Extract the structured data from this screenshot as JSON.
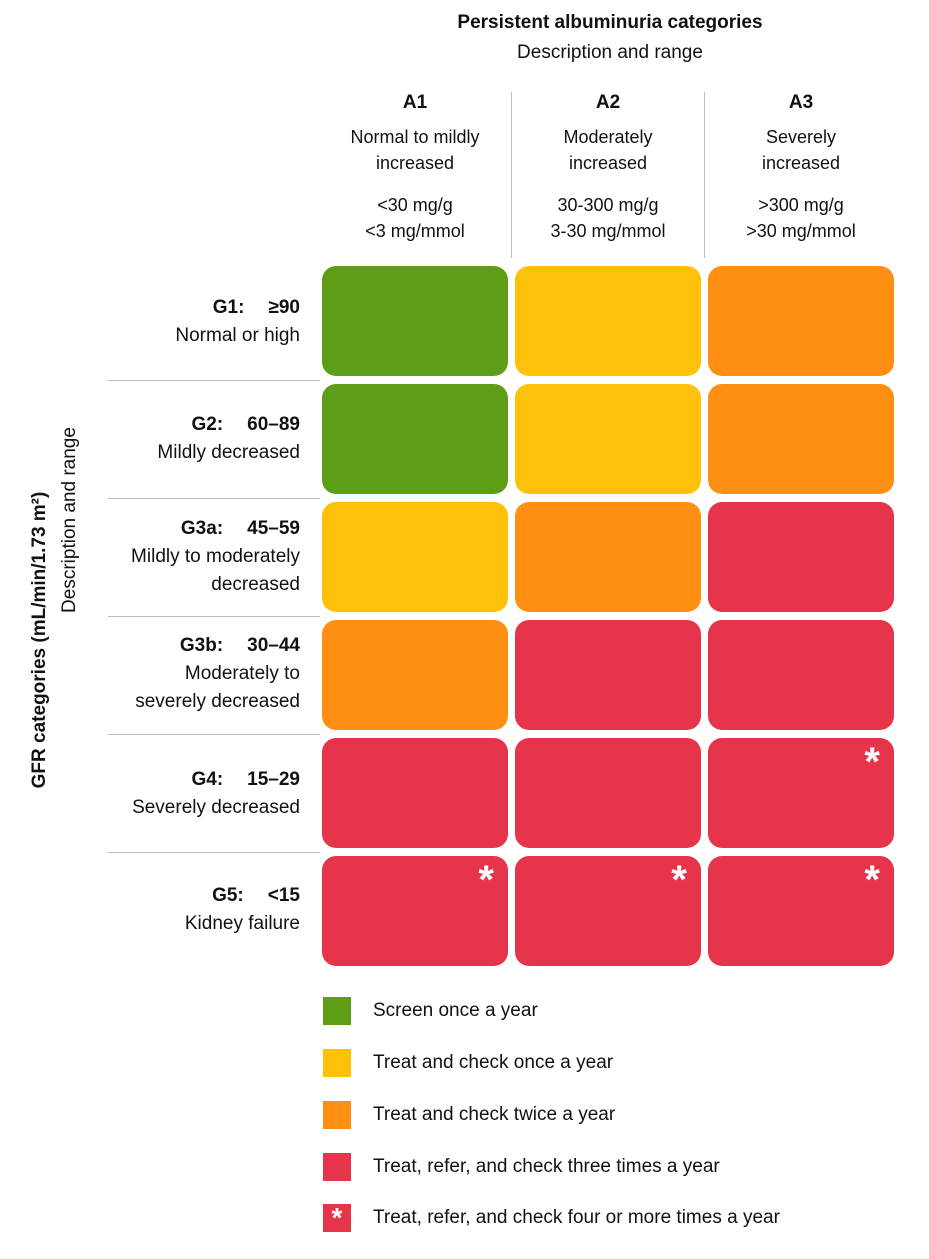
{
  "colors": {
    "green": "#5E9E16",
    "yellow": "#FFC00A",
    "orange": "#FE8F13",
    "red": "#E6354A"
  },
  "header": {
    "title": "Persistent albuminuria categories",
    "subtitle": "Description and range"
  },
  "side": {
    "title": "GFR categories (mL/min/1.73 m²)",
    "subtitle": "Description and range"
  },
  "columns": [
    {
      "code": "A1",
      "desc_line1": "Normal to mildly",
      "desc_line2": "increased",
      "range_line1": "<30 mg/g",
      "range_line2": "<3 mg/mmol"
    },
    {
      "code": "A2",
      "desc_line1": "Moderately",
      "desc_line2": "increased",
      "range_line1": "30-300 mg/g",
      "range_line2": "3-30 mg/mmol"
    },
    {
      "code": "A3",
      "desc_line1": "Severely",
      "desc_line2": "increased",
      "range_line1": ">300 mg/g",
      "range_line2": ">30 mg/mmol"
    }
  ],
  "rows": [
    {
      "code": "G1:",
      "range": "≥90",
      "desc_line1": "Normal or high",
      "desc_line2": "",
      "cells": [
        "green",
        "yellow",
        "orange"
      ],
      "stars": [
        false,
        false,
        false
      ]
    },
    {
      "code": "G2:",
      "range": "60–89",
      "desc_line1": "Mildly decreased",
      "desc_line2": "",
      "cells": [
        "green",
        "yellow",
        "orange"
      ],
      "stars": [
        false,
        false,
        false
      ]
    },
    {
      "code": "G3a:",
      "range": "45–59",
      "desc_line1": "Mildly to moderately",
      "desc_line2": "decreased",
      "cells": [
        "yellow",
        "orange",
        "red"
      ],
      "stars": [
        false,
        false,
        false
      ]
    },
    {
      "code": "G3b:",
      "range": "30–44",
      "desc_line1": "Moderately to",
      "desc_line2": "severely decreased",
      "cells": [
        "orange",
        "red",
        "red"
      ],
      "stars": [
        false,
        false,
        false
      ]
    },
    {
      "code": "G4:",
      "range": "15–29",
      "desc_line1": "Severely decreased",
      "desc_line2": "",
      "cells": [
        "red",
        "red",
        "red"
      ],
      "stars": [
        false,
        false,
        true
      ]
    },
    {
      "code": "G5:",
      "range": "<15",
      "desc_line1": "Kidney failure",
      "desc_line2": "",
      "cells": [
        "red",
        "red",
        "red"
      ],
      "stars": [
        true,
        true,
        true
      ]
    }
  ],
  "star_symbol": "*",
  "legend": [
    {
      "color": "green",
      "star": false,
      "label": "Screen once a year"
    },
    {
      "color": "yellow",
      "star": false,
      "label": "Treat and check once a year"
    },
    {
      "color": "orange",
      "star": false,
      "label": "Treat and check twice a year"
    },
    {
      "color": "red",
      "star": false,
      "label": "Treat, refer, and check three times a year"
    },
    {
      "color": "red",
      "star": true,
      "label": "Treat, refer, and check four or more times a year"
    }
  ]
}
